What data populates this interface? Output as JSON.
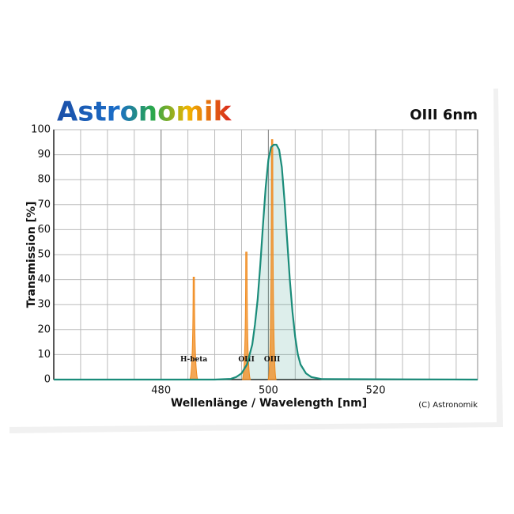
{
  "brand": "Astronomik",
  "copyright": "(C) Astronomik",
  "chart_data": {
    "type": "line",
    "title": "OIII 6nm",
    "x_label": "Wellenlänge / Wavelength [nm]",
    "y_label": "Transmission [%]",
    "xlim": [
      460,
      539
    ],
    "ylim": [
      0,
      100
    ],
    "xticks": [
      480,
      500,
      520
    ],
    "xgrid": [
      460,
      465,
      470,
      475,
      480,
      485,
      490,
      495,
      500,
      505,
      510,
      515,
      520,
      525,
      530,
      535
    ],
    "yticks": [
      0,
      10,
      20,
      30,
      40,
      50,
      60,
      70,
      80,
      90,
      100
    ],
    "grid": true,
    "series": [
      {
        "color": "#1a8c7a",
        "x": [
          460,
          490,
          493,
          494,
          495,
          496,
          497,
          497.5,
          498,
          498.5,
          499,
          499.5,
          500,
          500.5,
          501,
          501.5,
          502,
          502.5,
          503,
          503.5,
          504,
          504.5,
          505,
          505.5,
          506,
          507,
          508,
          510,
          539
        ],
        "values": [
          0,
          0,
          0.3,
          1,
          2.5,
          6,
          14,
          22,
          32,
          46,
          62,
          77,
          88,
          93,
          94,
          94,
          92,
          85,
          72,
          56,
          40,
          27,
          17,
          10,
          6,
          2.5,
          1,
          0.2,
          0
        ]
      }
    ],
    "emission_lines": {
      "color": "#f08a1c",
      "x": [
        486.1,
        495.9,
        500.7
      ],
      "values": [
        41,
        51,
        96
      ],
      "labels": [
        "H-beta",
        "OIII",
        "OIII"
      ]
    }
  }
}
